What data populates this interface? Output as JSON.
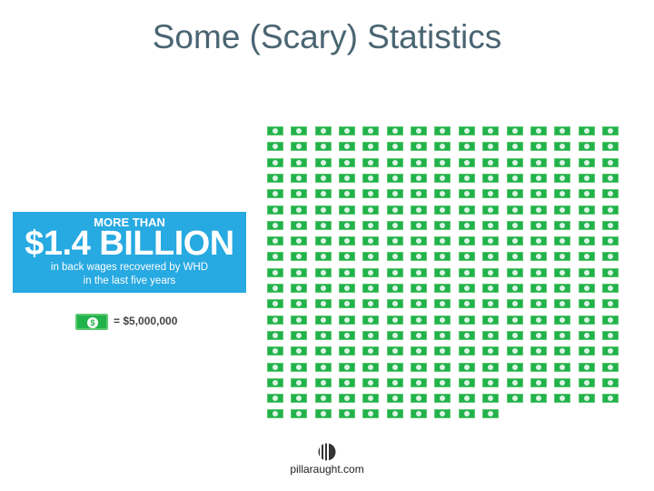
{
  "slide": {
    "title": "Some (Scary) Statistics"
  },
  "stat_box": {
    "line1": "MORE THAN",
    "amount": "$1.4 BILLION",
    "line3": "in back wages recovered by WHD",
    "line4": "in the last five years",
    "background_color": "#27a9e1"
  },
  "legend": {
    "symbol": "$",
    "text": "= $5,000,000",
    "icon": "dollar-bill-icon"
  },
  "pictogram": {
    "icon": "dollar-bill-icon",
    "full_rows": 18,
    "full_row_count": 15,
    "last_row_count": 10,
    "total_bills": 280,
    "value_per_bill": 5000000,
    "color": "#22b24c"
  },
  "footer": {
    "source": "pillaraught.com"
  }
}
